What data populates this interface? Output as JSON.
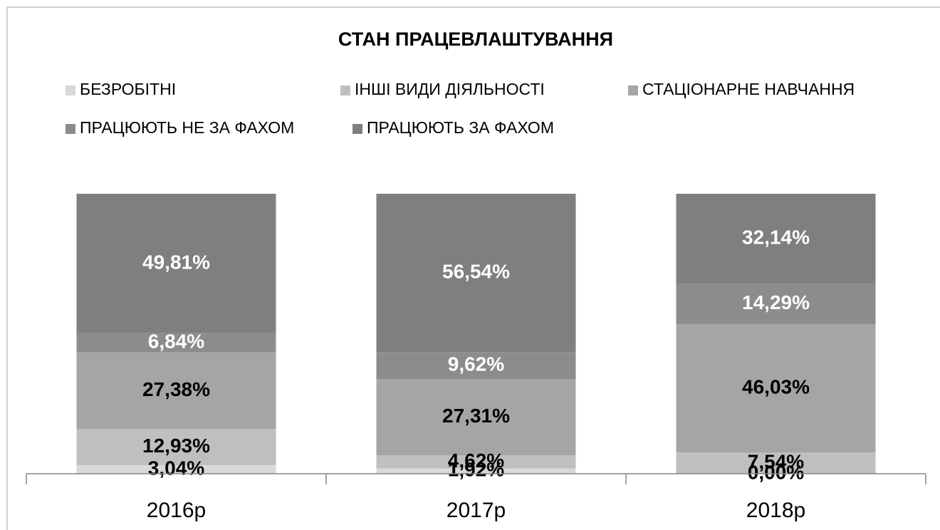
{
  "chart_data": {
    "type": "stacked_bar",
    "title": "СТАН ПРАЦЕВЛАШТУВАННЯ",
    "categories": [
      "2016р",
      "2017р",
      "2018р"
    ],
    "series": [
      {
        "name": "БЕЗРОБІТНІ",
        "color": "#d9d9d9",
        "label_color": "#000000",
        "values": [
          3.04,
          1.92,
          0.0
        ],
        "value_labels": [
          "3,04%",
          "1,92%",
          "0,00%"
        ]
      },
      {
        "name": "ІНШІ ВИДИ ДІЯЛЬНОСТІ",
        "color": "#bfbfbf",
        "label_color": "#000000",
        "values": [
          12.93,
          4.62,
          7.54
        ],
        "value_labels": [
          "12,93%",
          "4,62%",
          "7,54%"
        ]
      },
      {
        "name": "СТАЦІОНАРНЕ НАВЧАННЯ",
        "color": "#a5a5a5",
        "label_color": "#000000",
        "values": [
          27.38,
          27.31,
          46.03
        ],
        "value_labels": [
          "27,38%",
          "27,31%",
          "46,03%"
        ]
      },
      {
        "name": "ПРАЦЮЮТЬ НЕ ЗА ФАХОМ",
        "color": "#8c8c8c",
        "label_color": "#ffffff",
        "values": [
          6.84,
          9.62,
          14.29
        ],
        "value_labels": [
          "6,84%",
          "9,62%",
          "14,29%"
        ]
      },
      {
        "name": "ПРАЦЮЮТЬ ЗА ФАХОМ",
        "color": "#7f7f7f",
        "label_color": "#ffffff",
        "values": [
          49.81,
          56.54,
          32.14
        ],
        "value_labels": [
          "49,81%",
          "56,54%",
          "32,14%"
        ]
      }
    ],
    "legend": "top"
  }
}
